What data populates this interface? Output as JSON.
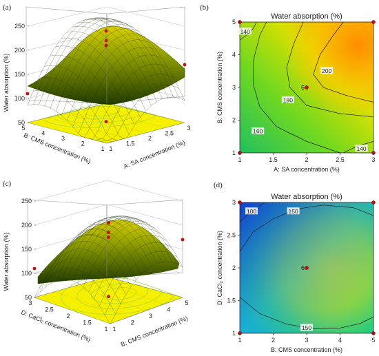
{
  "colors": {
    "contour_low": "#1040e0",
    "contour_mid": "#10d060",
    "contour_high": "#ff8c00",
    "surface_low": "#2a4a00",
    "surface_high": "#ffff30",
    "floor": "#f5ef00",
    "design_point": "#c01010"
  },
  "chart_data": [
    {
      "panel": "(a)",
      "type": "surface",
      "title": "",
      "xlabel": "A: SA concentration (%)",
      "ylabel": "B: CMS concentration (%)",
      "zlabel": "Water absorption (%)",
      "x_ticks": [
        "1",
        "1.5",
        "2",
        "2.5",
        "3"
      ],
      "y_ticks": [
        "1",
        "2",
        "3",
        "4",
        "5"
      ],
      "z_ticks": [
        "50",
        "100",
        "150",
        "200",
        "250"
      ],
      "x_range": [
        1,
        3
      ],
      "y_range": [
        1,
        5
      ],
      "z_range": [
        50,
        250
      ],
      "peak": {
        "x": 2.5,
        "y": 4.2,
        "z": 240
      }
    },
    {
      "panel": "(b)",
      "type": "contour",
      "title": "Water absorption (%)",
      "xlabel": "A: SA concentration (%)",
      "ylabel": "B: CMS concentration (%)",
      "x_ticks": [
        "1",
        "1.5",
        "2",
        "2.5",
        "3"
      ],
      "y_ticks": [
        "1",
        "2",
        "3",
        "4",
        "5"
      ],
      "x_range": [
        1,
        3
      ],
      "y_range": [
        1,
        5
      ],
      "contour_labels": [
        "140",
        "200",
        "180",
        "160",
        "140"
      ],
      "center_label": "6",
      "center_point": {
        "x": 2,
        "y": 3
      },
      "design_points": [
        [
          1,
          1
        ],
        [
          3,
          1
        ],
        [
          1,
          5
        ],
        [
          3,
          5
        ],
        [
          2,
          3
        ]
      ]
    },
    {
      "panel": "(c)",
      "type": "surface",
      "title": "",
      "xlabel": "B: CMS concentration (%)",
      "ylabel": "D: CaCl₂ concentration (%)",
      "zlabel": "Water absorption (%)",
      "x_ticks": [
        "1",
        "2",
        "3",
        "4",
        "5"
      ],
      "y_ticks": [
        "1",
        "1.5",
        "2",
        "2.5",
        "3"
      ],
      "z_ticks": [
        "50",
        "100",
        "150",
        "200",
        "250"
      ],
      "x_range": [
        1,
        5
      ],
      "y_range": [
        1,
        3
      ],
      "z_range": [
        50,
        250
      ],
      "peak": {
        "x": 3.6,
        "y": 2.0,
        "z": 205
      }
    },
    {
      "panel": "(d)",
      "type": "contour",
      "title": "Water absorption (%)",
      "xlabel": "B: CMS concentration (%)",
      "ylabel": "D: CaCl₂ concentration (%)",
      "x_ticks": [
        "1",
        "2",
        "3",
        "4",
        "5"
      ],
      "y_ticks": [
        "1",
        "1.5",
        "2",
        "2.5",
        "3"
      ],
      "x_range": [
        1,
        5
      ],
      "y_range": [
        1,
        3
      ],
      "contour_labels": [
        "100",
        "150",
        "150"
      ],
      "center_label": "6",
      "center_point": {
        "x": 3,
        "y": 2
      },
      "design_points": [
        [
          1,
          1
        ],
        [
          5,
          1
        ],
        [
          1,
          3
        ],
        [
          5,
          3
        ],
        [
          3,
          2
        ]
      ]
    }
  ]
}
